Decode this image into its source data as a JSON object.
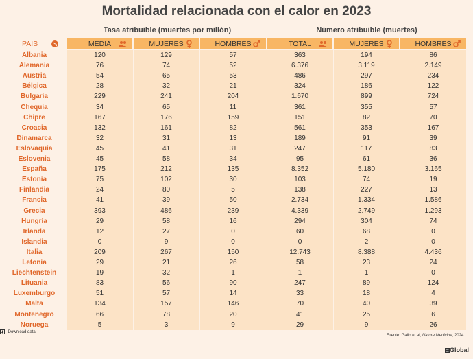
{
  "header": {
    "title": "Mortalidad relacionada con el calor en 2023",
    "group_rate": "Tasa atribuible (muertes por millón)",
    "group_count": "Número atribuible (muertes)"
  },
  "table": {
    "columns": [
      "PAÍS",
      "MEDIA",
      "MUJERES",
      "HOMBRES",
      "TOTAL",
      "MUJERES",
      "HOMBRES"
    ],
    "rows": [
      [
        "Albania",
        "120",
        "129",
        "57",
        "363",
        "194",
        "86"
      ],
      [
        "Alemania",
        "76",
        "74",
        "52",
        "6.376",
        "3.119",
        "2.149"
      ],
      [
        "Austria",
        "54",
        "65",
        "53",
        "486",
        "297",
        "234"
      ],
      [
        "Bélgica",
        "28",
        "32",
        "21",
        "324",
        "186",
        "122"
      ],
      [
        "Bulgaria",
        "229",
        "241",
        "204",
        "1.670",
        "899",
        "724"
      ],
      [
        "Chequia",
        "34",
        "65",
        "11",
        "361",
        "355",
        "57"
      ],
      [
        "Chipre",
        "167",
        "176",
        "159",
        "151",
        "82",
        "70"
      ],
      [
        "Croacia",
        "132",
        "161",
        "82",
        "561",
        "353",
        "167"
      ],
      [
        "Dinamarca",
        "32",
        "31",
        "13",
        "189",
        "91",
        "39"
      ],
      [
        "Eslovaquia",
        "45",
        "41",
        "31",
        "247",
        "117",
        "83"
      ],
      [
        "Eslovenia",
        "45",
        "58",
        "34",
        "95",
        "61",
        "36"
      ],
      [
        "España",
        "175",
        "212",
        "135",
        "8.352",
        "5.180",
        "3.165"
      ],
      [
        "Estonia",
        "75",
        "102",
        "30",
        "103",
        "74",
        "19"
      ],
      [
        "Finlandia",
        "24",
        "80",
        "5",
        "138",
        "227",
        "13"
      ],
      [
        "Francia",
        "41",
        "39",
        "50",
        "2.734",
        "1.334",
        "1.586"
      ],
      [
        "Grecia",
        "393",
        "486",
        "239",
        "4.339",
        "2.749",
        "1.293"
      ],
      [
        "Hungría",
        "29",
        "58",
        "16",
        "294",
        "304",
        "74"
      ],
      [
        "Irlanda",
        "12",
        "27",
        "0",
        "60",
        "68",
        "0"
      ],
      [
        "Islandia",
        "0",
        "9",
        "0",
        "0",
        "2",
        "0"
      ],
      [
        "Italia",
        "209",
        "267",
        "150",
        "12.743",
        "8.388",
        "4.436"
      ],
      [
        "Letonia",
        "29",
        "21",
        "26",
        "58",
        "23",
        "24"
      ],
      [
        "Liechtenstein",
        "19",
        "32",
        "1",
        "1",
        "1",
        "0"
      ],
      [
        "Lituania",
        "83",
        "56",
        "90",
        "247",
        "89",
        "124"
      ],
      [
        "Luxemburgo",
        "51",
        "57",
        "14",
        "33",
        "18",
        "4"
      ],
      [
        "Malta",
        "134",
        "157",
        "146",
        "70",
        "40",
        "39"
      ],
      [
        "Montenegro",
        "66",
        "78",
        "20",
        "41",
        "25",
        "6"
      ],
      [
        "Noruega",
        "5",
        "3",
        "9",
        "29",
        "9",
        "26"
      ]
    ]
  },
  "footer": {
    "download": "Download data",
    "source_prefix": "Fuente: Gallo et al, ",
    "source_italic": "Nature Medicine",
    "source_suffix": ", 2024.",
    "logo": "Global"
  }
}
